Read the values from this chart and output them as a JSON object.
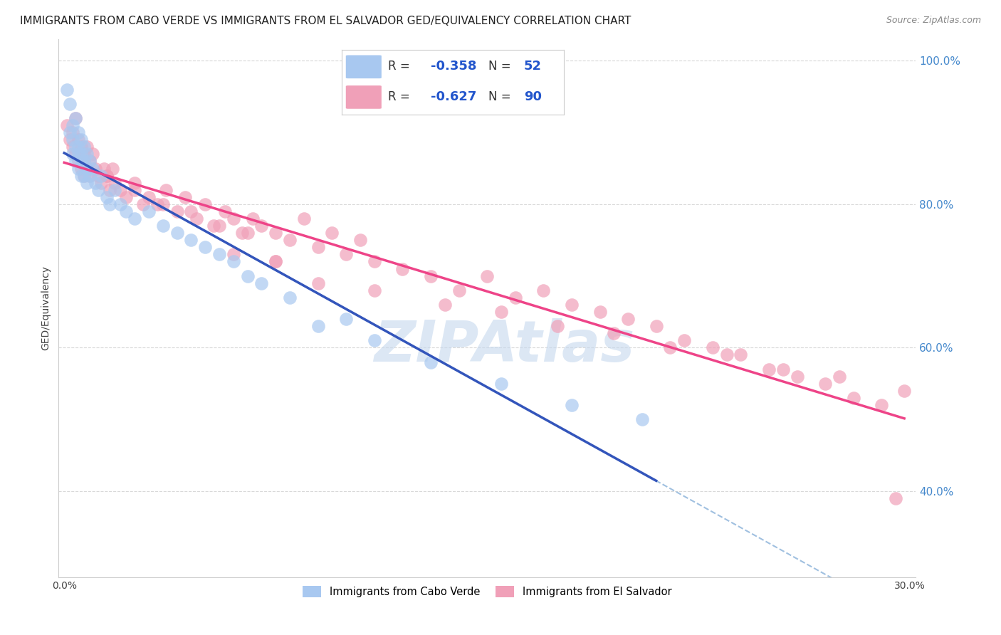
{
  "title": "IMMIGRANTS FROM CABO VERDE VS IMMIGRANTS FROM EL SALVADOR GED/EQUIVALENCY CORRELATION CHART",
  "source": "Source: ZipAtlas.com",
  "ylabel": "GED/Equivalency",
  "xlim": [
    -0.002,
    0.302
  ],
  "ylim": [
    0.28,
    1.03
  ],
  "x_ticks": [
    0.0,
    0.05,
    0.1,
    0.15,
    0.2,
    0.25,
    0.3
  ],
  "x_tick_labels": [
    "0.0%",
    "",
    "",
    "",
    "",
    "",
    "30.0%"
  ],
  "y_ticks_right": [
    1.0,
    0.8,
    0.6,
    0.4
  ],
  "y_tick_labels_right": [
    "100.0%",
    "80.0%",
    "60.0%",
    "40.0%"
  ],
  "color_blue": "#a8c8f0",
  "color_pink": "#f0a0b8",
  "line_blue": "#3355bb",
  "line_pink": "#ee4488",
  "line_dashed": "#a0c0e0",
  "watermark": "ZIPAtlas",
  "watermark_color": "#c5d8ee",
  "grid_color": "#d8d8d8",
  "bg_color": "#ffffff",
  "title_fontsize": 11,
  "axis_fontsize": 10,
  "cabo_verde_x": [
    0.001,
    0.002,
    0.002,
    0.003,
    0.003,
    0.003,
    0.004,
    0.004,
    0.004,
    0.005,
    0.005,
    0.005,
    0.005,
    0.006,
    0.006,
    0.006,
    0.006,
    0.007,
    0.007,
    0.007,
    0.008,
    0.008,
    0.008,
    0.009,
    0.009,
    0.01,
    0.011,
    0.012,
    0.013,
    0.015,
    0.016,
    0.018,
    0.02,
    0.022,
    0.025,
    0.03,
    0.035,
    0.04,
    0.045,
    0.05,
    0.055,
    0.06,
    0.065,
    0.07,
    0.08,
    0.09,
    0.1,
    0.11,
    0.13,
    0.155,
    0.18,
    0.205
  ],
  "cabo_verde_y": [
    0.96,
    0.94,
    0.9,
    0.91,
    0.89,
    0.87,
    0.92,
    0.88,
    0.86,
    0.9,
    0.88,
    0.87,
    0.85,
    0.89,
    0.87,
    0.86,
    0.84,
    0.88,
    0.86,
    0.84,
    0.87,
    0.85,
    0.83,
    0.86,
    0.84,
    0.85,
    0.83,
    0.82,
    0.84,
    0.81,
    0.8,
    0.82,
    0.8,
    0.79,
    0.78,
    0.79,
    0.77,
    0.76,
    0.75,
    0.74,
    0.73,
    0.72,
    0.7,
    0.69,
    0.67,
    0.63,
    0.64,
    0.61,
    0.58,
    0.55,
    0.52,
    0.5
  ],
  "el_salvador_x": [
    0.001,
    0.002,
    0.003,
    0.003,
    0.004,
    0.004,
    0.005,
    0.005,
    0.006,
    0.006,
    0.007,
    0.007,
    0.007,
    0.008,
    0.008,
    0.009,
    0.009,
    0.01,
    0.011,
    0.012,
    0.013,
    0.014,
    0.015,
    0.016,
    0.017,
    0.018,
    0.02,
    0.022,
    0.025,
    0.028,
    0.03,
    0.033,
    0.036,
    0.04,
    0.043,
    0.047,
    0.05,
    0.053,
    0.057,
    0.06,
    0.063,
    0.067,
    0.07,
    0.075,
    0.08,
    0.085,
    0.09,
    0.095,
    0.1,
    0.105,
    0.11,
    0.12,
    0.13,
    0.14,
    0.15,
    0.16,
    0.17,
    0.18,
    0.19,
    0.2,
    0.21,
    0.22,
    0.23,
    0.24,
    0.25,
    0.26,
    0.27,
    0.28,
    0.29,
    0.298,
    0.06,
    0.075,
    0.09,
    0.11,
    0.135,
    0.155,
    0.175,
    0.195,
    0.215,
    0.235,
    0.255,
    0.275,
    0.295,
    0.015,
    0.025,
    0.035,
    0.045,
    0.055,
    0.065,
    0.075
  ],
  "el_salvador_y": [
    0.91,
    0.89,
    0.9,
    0.88,
    0.92,
    0.87,
    0.89,
    0.86,
    0.88,
    0.85,
    0.87,
    0.86,
    0.84,
    0.88,
    0.85,
    0.86,
    0.84,
    0.87,
    0.85,
    0.84,
    0.83,
    0.85,
    0.84,
    0.82,
    0.85,
    0.83,
    0.82,
    0.81,
    0.83,
    0.8,
    0.81,
    0.8,
    0.82,
    0.79,
    0.81,
    0.78,
    0.8,
    0.77,
    0.79,
    0.78,
    0.76,
    0.78,
    0.77,
    0.76,
    0.75,
    0.78,
    0.74,
    0.76,
    0.73,
    0.75,
    0.72,
    0.71,
    0.7,
    0.68,
    0.7,
    0.67,
    0.68,
    0.66,
    0.65,
    0.64,
    0.63,
    0.61,
    0.6,
    0.59,
    0.57,
    0.56,
    0.55,
    0.53,
    0.52,
    0.54,
    0.73,
    0.72,
    0.69,
    0.68,
    0.66,
    0.65,
    0.63,
    0.62,
    0.6,
    0.59,
    0.57,
    0.56,
    0.39,
    0.84,
    0.82,
    0.8,
    0.79,
    0.77,
    0.76,
    0.72
  ]
}
